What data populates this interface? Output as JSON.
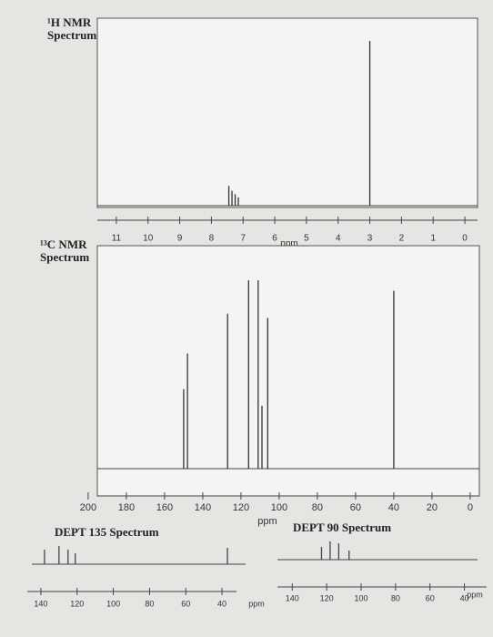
{
  "chart_data": [
    {
      "type": "spectrum",
      "title": "¹H NMR Spectrum",
      "x_label": "ppm",
      "xlim": [
        11.6,
        -0.4
      ],
      "xticks": [
        11,
        10,
        9,
        8,
        7,
        6,
        5,
        4,
        3,
        2,
        1,
        0
      ],
      "x": [
        7.45,
        7.35,
        7.25,
        7.15,
        3.0
      ],
      "values": [
        0.12,
        0.09,
        0.07,
        0.05,
        1.0
      ],
      "color": "#333333"
    },
    {
      "type": "spectrum",
      "title": "¹³C NMR Spectrum",
      "x_label": "ppm",
      "xlim": [
        195.2,
        -4.8
      ],
      "xticks": [
        200,
        180,
        160,
        140,
        120,
        100,
        80,
        60,
        40,
        20,
        0
      ],
      "x": [
        150,
        148,
        127,
        116,
        111,
        109,
        106,
        40
      ],
      "values": [
        0.38,
        0.55,
        0.74,
        0.9,
        0.9,
        0.3,
        0.72,
        0.85
      ],
      "color": "#333333"
    },
    {
      "type": "spectrum",
      "title": "DEPT 135 Spectrum",
      "x_label": "ppm",
      "xlim": [
        147.5,
        32
      ],
      "xticks": [
        140,
        120,
        100,
        80,
        60,
        40
      ],
      "x": [
        138,
        130,
        125,
        121,
        37
      ],
      "values": [
        0.8,
        1.0,
        0.8,
        0.6,
        0.9
      ],
      "color": "#444444"
    },
    {
      "type": "spectrum",
      "title": "DEPT 90 Spectrum",
      "x_label": "ppm",
      "xlim": [
        148.6,
        27.1
      ],
      "xticks": [
        140,
        120,
        100,
        80,
        60,
        40
      ],
      "x": [
        123,
        118,
        113,
        107
      ],
      "values": [
        0.7,
        1.0,
        0.9,
        0.5
      ],
      "color": "#444444"
    }
  ]
}
